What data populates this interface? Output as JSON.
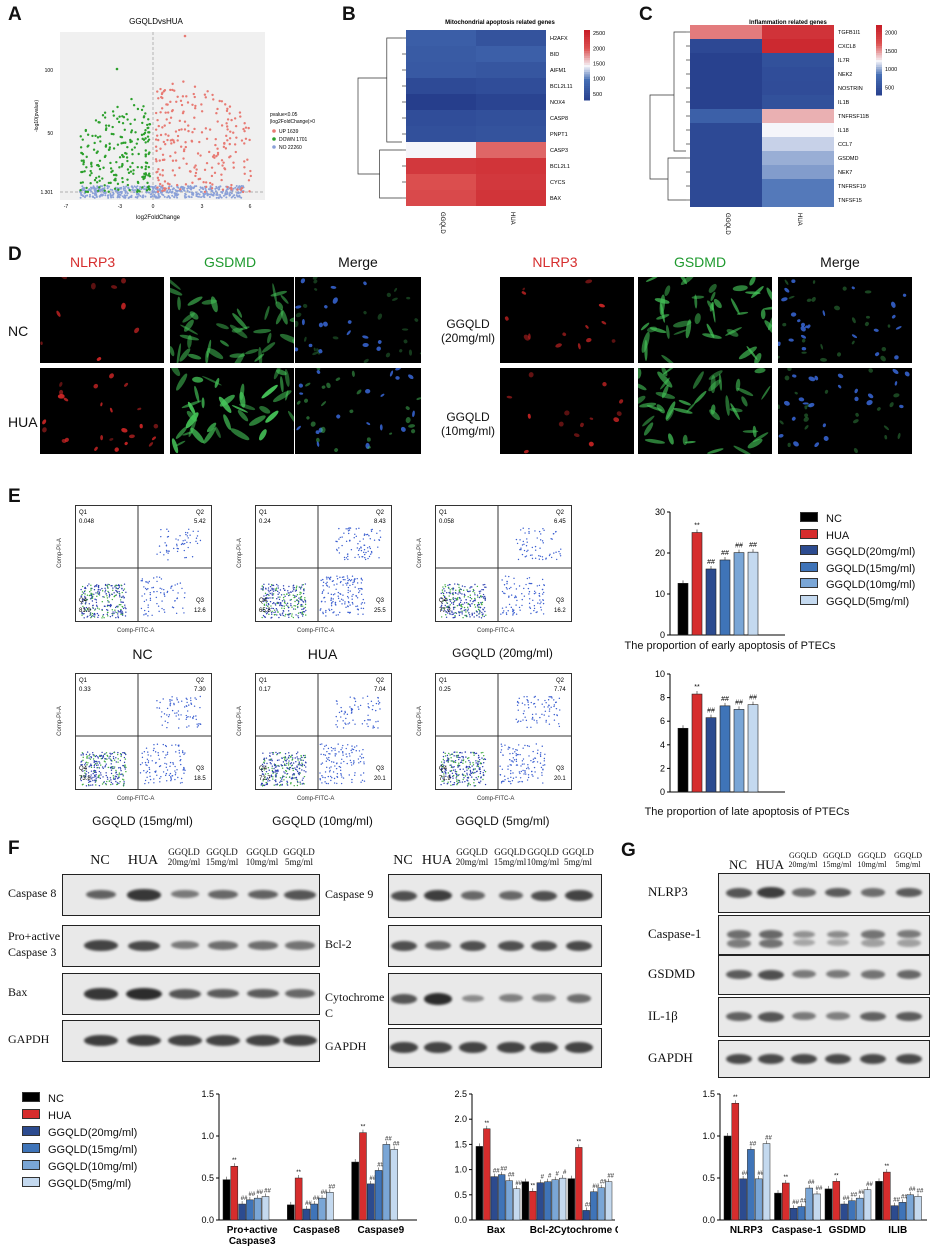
{
  "panels": {
    "A": "A",
    "B": "B",
    "C": "C",
    "D": "D",
    "E": "E",
    "F": "F",
    "G": "G"
  },
  "volcano": {
    "title": "GGQLDvsHUA",
    "xlabel": "log2FoldChange",
    "ylabel": "-log10(pvalue)",
    "legend_title": "pvalue<0.05\n|log2FoldChange|>0",
    "legend_line1": "pvalue<0.05",
    "legend_line2": "|log2FoldChange|>0",
    "legend": [
      {
        "label": "UP 1639",
        "color": "#e87a73"
      },
      {
        "label": "DOWN 1701",
        "color": "#2ca02c"
      },
      {
        "label": "NO 22260",
        "color": "#8aa0d8"
      }
    ],
    "xticks": [
      "-7",
      "-3",
      "0",
      "3",
      "6"
    ],
    "yticks": [
      "100",
      "50",
      "1.301"
    ]
  },
  "heatmap_B": {
    "title": "Mitochondrial apoptosis related genes",
    "columns": [
      "GGQLD",
      "HUA"
    ],
    "rows": [
      "H2AFX",
      "BID",
      "AIFM1",
      "BCL2L11",
      "NOX4",
      "CASP8",
      "PNPT1",
      "CASP3",
      "BCL2L1",
      "CYCS",
      "BAX"
    ],
    "values": [
      [
        760,
        600
      ],
      [
        720,
        780
      ],
      [
        690,
        640
      ],
      [
        470,
        520
      ],
      [
        290,
        380
      ],
      [
        520,
        560
      ],
      [
        560,
        600
      ],
      [
        1450,
        1950
      ],
      [
        2300,
        2350
      ],
      [
        2050,
        2300
      ],
      [
        2100,
        2350
      ]
    ],
    "colorbar_ticks": [
      "2500",
      "2000",
      "1500",
      "1000",
      "500"
    ],
    "range": [
      300,
      2600
    ]
  },
  "heatmap_C": {
    "title": "Inflammation related genes",
    "columns": [
      "GGQLD",
      "HUA"
    ],
    "rows": [
      "TGFB1I1",
      "CXCL8",
      "IL7R",
      "NEK2",
      "NOSTRIN",
      "IL1B",
      "TNFRSF11B",
      "IL18",
      "CCL7",
      "GSDMD",
      "NEK7",
      "TNFRSF19",
      "TNFSF15"
    ],
    "values": [
      [
        1600,
        2000
      ],
      [
        420,
        2100
      ],
      [
        330,
        520
      ],
      [
        330,
        480
      ],
      [
        330,
        470
      ],
      [
        330,
        520
      ],
      [
        700,
        1450
      ],
      [
        430,
        1250
      ],
      [
        430,
        1150
      ],
      [
        430,
        1050
      ],
      [
        430,
        1000
      ],
      [
        430,
        900
      ],
      [
        430,
        900
      ]
    ],
    "colorbar_ticks": [
      "2000",
      "1500",
      "1000",
      "500"
    ],
    "range": [
      300,
      2200
    ]
  },
  "immuno": {
    "col_headers_left": [
      "NLRP3",
      "GSDMD",
      "Merge"
    ],
    "col_headers_right": [
      "NLRP3",
      "GSDMD",
      "Merge"
    ],
    "row_labels_left": [
      "NC",
      "HUA"
    ],
    "row_labels_right": [
      "GGQLD\n(20mg/ml)",
      "GGQLD\n(10mg/ml)"
    ],
    "right_row1_a": "GGQLD",
    "right_row1_b": "(20mg/ml)",
    "right_row2_a": "GGQLD",
    "right_row2_b": "(10mg/ml)"
  },
  "flow": {
    "axis_y": "Comp-PI-A",
    "axis_x": "Comp-FITC-A",
    "plots": [
      {
        "label": "NC",
        "q1": "0.048",
        "q2": "5.42",
        "q3": "12.6",
        "q4": "81.9"
      },
      {
        "label": "HUA",
        "q1": "0.24",
        "q2": "8.43",
        "q3": "25.5",
        "q4": "65.8"
      },
      {
        "label": "GGQLD (20mg/ml)",
        "q1": "0.058",
        "q2": "6.45",
        "q3": "16.2",
        "q4": "77.3"
      },
      {
        "label": "GGQLD (15mg/ml)",
        "q1": "0.33",
        "q2": "7.30",
        "q3": "18.5",
        "q4": "73.8"
      },
      {
        "label": "GGQLD (10mg/ml)",
        "q1": "0.17",
        "q2": "7.04",
        "q3": "20.1",
        "q4": "72.7"
      },
      {
        "label": "GGQLD (5mg/ml)",
        "q1": "0.25",
        "q2": "7.74",
        "q3": "20.1",
        "q4": "71.9"
      }
    ],
    "qlabels": [
      "Q1",
      "Q2",
      "Q3",
      "Q4"
    ]
  },
  "groups": [
    {
      "name": "NC",
      "color": "#000000"
    },
    {
      "name": "HUA",
      "color": "#d62d2d"
    },
    {
      "name": "GGQLD(20mg/ml)",
      "color": "#2c4b8f"
    },
    {
      "name": "GGQLD(15mg/ml)",
      "color": "#3f74b8"
    },
    {
      "name": "GGQLD(10mg/ml)",
      "color": "#7aa6d6"
    },
    {
      "name": "GGQLD(5mg/ml)",
      "color": "#c4d9ef"
    }
  ],
  "chart_data": [
    {
      "type": "bar",
      "title": "The proportion of early apoptosis of PTECs",
      "categories": [
        "NC",
        "HUA",
        "GGQLD(20mg/ml)",
        "GGQLD(15mg/ml)",
        "GGQLD(10mg/ml)",
        "GGQLD(5mg/ml)"
      ],
      "values": [
        12.6,
        25.0,
        16.1,
        18.3,
        20.1,
        20.2
      ],
      "annotations": [
        "",
        "**",
        "##",
        "##",
        "##",
        "##"
      ],
      "ylim": [
        0,
        30
      ],
      "yticks": [
        "0",
        "10",
        "20",
        "30"
      ]
    },
    {
      "type": "bar",
      "title": "The proportion of late apoptosis of PTECs",
      "categories": [
        "NC",
        "HUA",
        "GGQLD(20mg/ml)",
        "GGQLD(15mg/ml)",
        "GGQLD(10mg/ml)",
        "GGQLD(5mg/ml)"
      ],
      "values": [
        5.4,
        8.3,
        6.3,
        7.3,
        7.0,
        7.4
      ],
      "annotations": [
        "",
        "**",
        "##",
        "##",
        "##",
        "##"
      ],
      "ylim": [
        0,
        10
      ],
      "yticks": [
        "0",
        "2",
        "4",
        "6",
        "8",
        "10"
      ]
    },
    {
      "type": "bar",
      "categories": [
        "Pro+active Caspase3",
        "Caspase8",
        "Caspase9"
      ],
      "series": [
        {
          "name": "NC",
          "values": [
            0.48,
            0.18,
            0.69
          ]
        },
        {
          "name": "HUA",
          "values": [
            0.64,
            0.5,
            1.04
          ]
        },
        {
          "name": "GGQLD(20mg/ml)",
          "values": [
            0.19,
            0.13,
            0.43
          ]
        },
        {
          "name": "GGQLD(15mg/ml)",
          "values": [
            0.24,
            0.19,
            0.59
          ]
        },
        {
          "name": "GGQLD(10mg/ml)",
          "values": [
            0.26,
            0.26,
            0.9
          ]
        },
        {
          "name": "GGQLD(5mg/ml)",
          "values": [
            0.28,
            0.33,
            0.84
          ]
        }
      ],
      "annotations": [
        [
          "",
          "**",
          "##",
          "##",
          "##",
          "##"
        ],
        [
          "",
          "**",
          "##",
          "##",
          "##",
          "##"
        ],
        [
          "",
          "**",
          "##",
          "##",
          "##",
          "##"
        ]
      ],
      "ylim": [
        0,
        1.5
      ],
      "yticks": [
        "0.0",
        "0.5",
        "1.0",
        "1.5"
      ]
    },
    {
      "type": "bar",
      "categories": [
        "Bax",
        "Bcl-2",
        "Cytochrome C"
      ],
      "series": [
        {
          "name": "NC",
          "values": [
            1.46,
            0.76,
            0.82
          ]
        },
        {
          "name": "HUA",
          "values": [
            1.81,
            0.57,
            1.44
          ]
        },
        {
          "name": "GGQLD(20mg/ml)",
          "values": [
            0.86,
            0.74,
            0.19
          ]
        },
        {
          "name": "GGQLD(15mg/ml)",
          "values": [
            0.9,
            0.76,
            0.56
          ]
        },
        {
          "name": "GGQLD(10mg/ml)",
          "values": [
            0.78,
            0.8,
            0.64
          ]
        },
        {
          "name": "GGQLD(5mg/ml)",
          "values": [
            0.62,
            0.83,
            0.76
          ]
        }
      ],
      "annotations": [
        [
          "",
          "**",
          "##",
          "##",
          "##",
          "##"
        ],
        [
          "",
          "**",
          "#",
          "#",
          "#",
          "#"
        ],
        [
          "",
          "**",
          "##",
          "##",
          "##",
          "##"
        ]
      ],
      "ylim": [
        0,
        2.5
      ],
      "yticks": [
        "0.0",
        "0.5",
        "1.0",
        "1.5",
        "2.0",
        "2.5"
      ]
    },
    {
      "type": "bar",
      "categories": [
        "NLRP3",
        "Caspase-1",
        "GSDMD",
        "ILIB"
      ],
      "series": [
        {
          "name": "NC",
          "values": [
            1.0,
            0.32,
            0.37,
            0.46
          ]
        },
        {
          "name": "HUA",
          "values": [
            1.39,
            0.44,
            0.46,
            0.57
          ]
        },
        {
          "name": "GGQLD(20mg/ml)",
          "values": [
            0.49,
            0.14,
            0.19,
            0.17
          ]
        },
        {
          "name": "GGQLD(15mg/ml)",
          "values": [
            0.84,
            0.16,
            0.23,
            0.21
          ]
        },
        {
          "name": "GGQLD(10mg/ml)",
          "values": [
            0.49,
            0.38,
            0.26,
            0.3
          ]
        },
        {
          "name": "GGQLD(5mg/ml)",
          "values": [
            0.91,
            0.31,
            0.36,
            0.28
          ]
        }
      ],
      "annotations": [
        [
          "",
          "**",
          "##",
          "##",
          "##",
          "##"
        ],
        [
          "",
          "**",
          "##",
          "##",
          "##",
          "##"
        ],
        [
          "",
          "**",
          "##",
          "##",
          "##",
          "##"
        ],
        [
          "",
          "**",
          "##",
          "##",
          "##",
          "##"
        ]
      ],
      "ylim": [
        0,
        1.5
      ],
      "yticks": [
        "0.0",
        "0.5",
        "1.0",
        "1.5"
      ]
    }
  ],
  "blots_F1": {
    "headers": [
      "NC",
      "HUA",
      "GGQLD\n20mg/ml",
      "GGQLD\n15mg/ml",
      "GGQLD\n10mg/ml",
      "GGQLD\n5mg/ml"
    ],
    "rows": [
      "Caspase 8",
      "Pro+active\nCaspase 3",
      "Bax",
      "GAPDH"
    ],
    "row_a": "Caspase 8",
    "row_b1": "Pro+active",
    "row_b2": "Caspase 3",
    "row_c": "Bax",
    "row_d": "GAPDH"
  },
  "blots_F2": {
    "rows": [
      "Caspase 9",
      "Bcl-2",
      "Cytochrome C",
      "GAPDH"
    ]
  },
  "blots_G": {
    "rows": [
      "NLRP3",
      "Caspase-1",
      "GSDMD",
      "IL-1β",
      "GAPDH"
    ]
  },
  "blot_header_short": [
    "NC",
    "HUA",
    "GGQLD",
    "GGQLD",
    "GGQLD",
    "GGQLD"
  ],
  "blot_header_dose": [
    "",
    "",
    "20mg/ml",
    "15mg/ml",
    "10mg/ml",
    "5mg/ml"
  ]
}
